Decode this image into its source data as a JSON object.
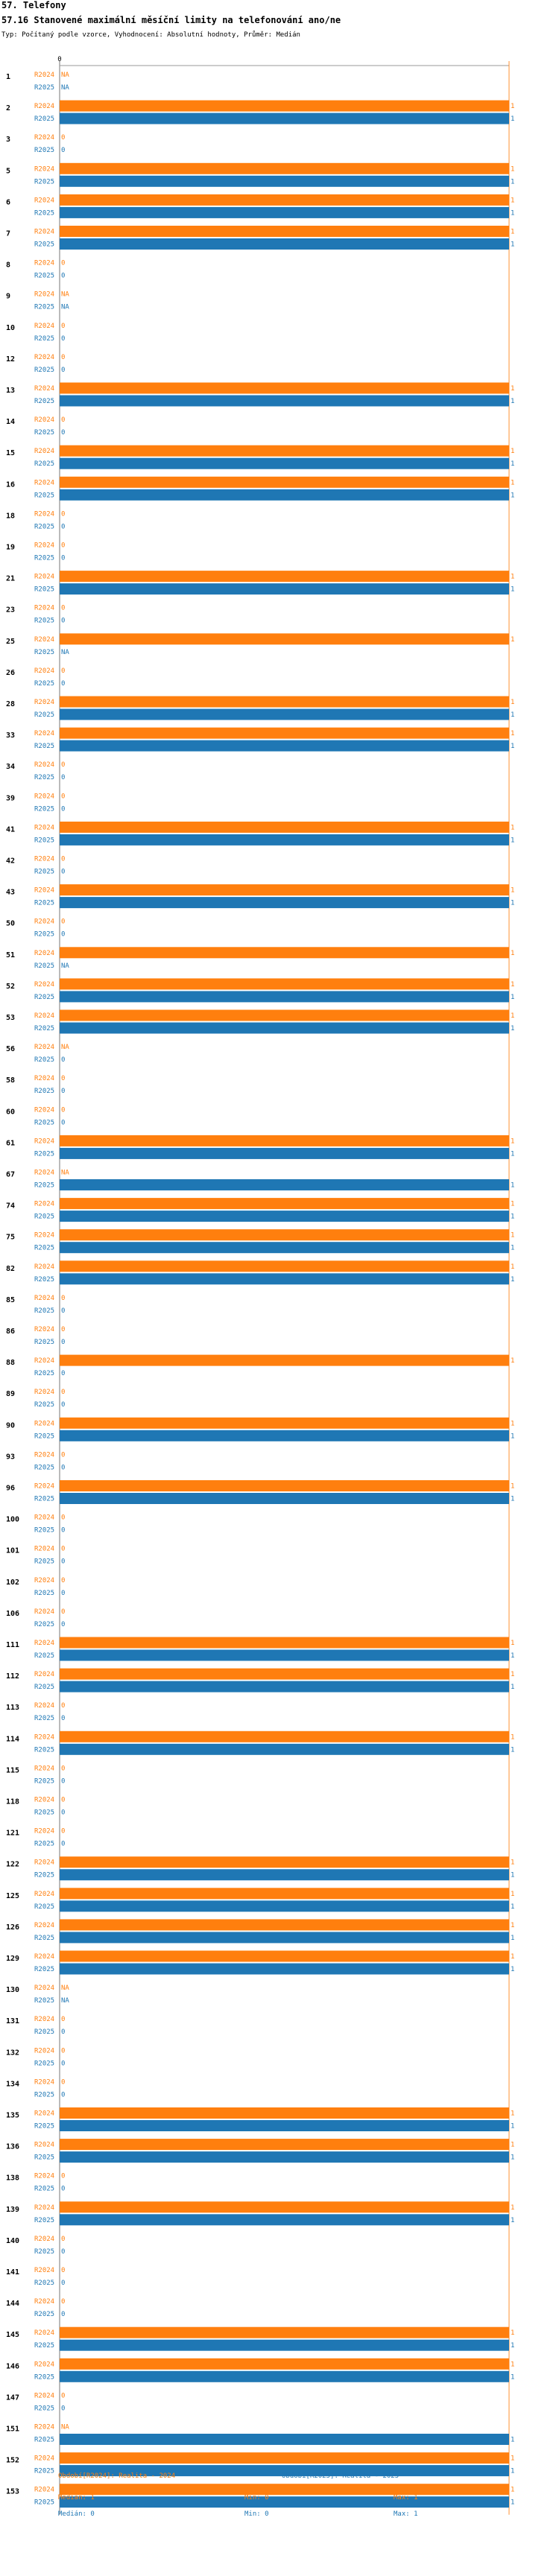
{
  "header": {
    "section": "57. Telefony",
    "title": "57.16 Stanovené maximální měsíční limity na telefonování ano/ne",
    "subtitle": "Typ: Počítaný podle vzorce, Vyhodnocení: Absolutní hodnoty, Průměr: Medián"
  },
  "colors": {
    "r2024": "#ff7f0e",
    "r2025": "#1f77b4"
  },
  "chart_data": {
    "type": "bar",
    "orientation": "horizontal",
    "axis_zero_label": "0",
    "xlim": [
      0,
      1
    ],
    "series": [
      {
        "name": "R2024",
        "color": "#ff7f0e"
      },
      {
        "name": "R2025",
        "color": "#1f77b4"
      }
    ],
    "categories": [
      {
        "id": "1",
        "R2024": null,
        "R2025": null
      },
      {
        "id": "2",
        "R2024": 1,
        "R2025": 1
      },
      {
        "id": "3",
        "R2024": 0,
        "R2025": 0
      },
      {
        "id": "5",
        "R2024": 1,
        "R2025": 1
      },
      {
        "id": "6",
        "R2024": 1,
        "R2025": 1
      },
      {
        "id": "7",
        "R2024": 1,
        "R2025": 1
      },
      {
        "id": "8",
        "R2024": 0,
        "R2025": 0
      },
      {
        "id": "9",
        "R2024": null,
        "R2025": null
      },
      {
        "id": "10",
        "R2024": 0,
        "R2025": 0
      },
      {
        "id": "12",
        "R2024": 0,
        "R2025": 0
      },
      {
        "id": "13",
        "R2024": 1,
        "R2025": 1
      },
      {
        "id": "14",
        "R2024": 0,
        "R2025": 0
      },
      {
        "id": "15",
        "R2024": 1,
        "R2025": 1
      },
      {
        "id": "16",
        "R2024": 1,
        "R2025": 1
      },
      {
        "id": "18",
        "R2024": 0,
        "R2025": 0
      },
      {
        "id": "19",
        "R2024": 0,
        "R2025": 0
      },
      {
        "id": "21",
        "R2024": 1,
        "R2025": 1
      },
      {
        "id": "23",
        "R2024": 0,
        "R2025": 0
      },
      {
        "id": "25",
        "R2024": 1,
        "R2025": null
      },
      {
        "id": "26",
        "R2024": 0,
        "R2025": 0
      },
      {
        "id": "28",
        "R2024": 1,
        "R2025": 1
      },
      {
        "id": "33",
        "R2024": 1,
        "R2025": 1
      },
      {
        "id": "34",
        "R2024": 0,
        "R2025": 0
      },
      {
        "id": "39",
        "R2024": 0,
        "R2025": 0
      },
      {
        "id": "41",
        "R2024": 1,
        "R2025": 1
      },
      {
        "id": "42",
        "R2024": 0,
        "R2025": 0
      },
      {
        "id": "43",
        "R2024": 1,
        "R2025": 1
      },
      {
        "id": "50",
        "R2024": 0,
        "R2025": 0
      },
      {
        "id": "51",
        "R2024": 1,
        "R2025": null
      },
      {
        "id": "52",
        "R2024": 1,
        "R2025": 1
      },
      {
        "id": "53",
        "R2024": 1,
        "R2025": 1
      },
      {
        "id": "56",
        "R2024": null,
        "R2025": 0
      },
      {
        "id": "58",
        "R2024": 0,
        "R2025": 0
      },
      {
        "id": "60",
        "R2024": 0,
        "R2025": 0
      },
      {
        "id": "61",
        "R2024": 1,
        "R2025": 1
      },
      {
        "id": "67",
        "R2024": null,
        "R2025": 1
      },
      {
        "id": "74",
        "R2024": 1,
        "R2025": 1
      },
      {
        "id": "75",
        "R2024": 1,
        "R2025": 1
      },
      {
        "id": "82",
        "R2024": 1,
        "R2025": 1
      },
      {
        "id": "85",
        "R2024": 0,
        "R2025": 0
      },
      {
        "id": "86",
        "R2024": 0,
        "R2025": 0
      },
      {
        "id": "88",
        "R2024": 1,
        "R2025": 0
      },
      {
        "id": "89",
        "R2024": 0,
        "R2025": 0
      },
      {
        "id": "90",
        "R2024": 1,
        "R2025": 1
      },
      {
        "id": "93",
        "R2024": 0,
        "R2025": 0
      },
      {
        "id": "96",
        "R2024": 1,
        "R2025": 1
      },
      {
        "id": "100",
        "R2024": 0,
        "R2025": 0
      },
      {
        "id": "101",
        "R2024": 0,
        "R2025": 0
      },
      {
        "id": "102",
        "R2024": 0,
        "R2025": 0
      },
      {
        "id": "106",
        "R2024": 0,
        "R2025": 0
      },
      {
        "id": "111",
        "R2024": 1,
        "R2025": 1
      },
      {
        "id": "112",
        "R2024": 1,
        "R2025": 1
      },
      {
        "id": "113",
        "R2024": 0,
        "R2025": 0
      },
      {
        "id": "114",
        "R2024": 1,
        "R2025": 1
      },
      {
        "id": "115",
        "R2024": 0,
        "R2025": 0
      },
      {
        "id": "118",
        "R2024": 0,
        "R2025": 0
      },
      {
        "id": "121",
        "R2024": 0,
        "R2025": 0
      },
      {
        "id": "122",
        "R2024": 1,
        "R2025": 1
      },
      {
        "id": "125",
        "R2024": 1,
        "R2025": 1
      },
      {
        "id": "126",
        "R2024": 1,
        "R2025": 1
      },
      {
        "id": "129",
        "R2024": 1,
        "R2025": 1
      },
      {
        "id": "130",
        "R2024": null,
        "R2025": null
      },
      {
        "id": "131",
        "R2024": 0,
        "R2025": 0
      },
      {
        "id": "132",
        "R2024": 0,
        "R2025": 0
      },
      {
        "id": "134",
        "R2024": 0,
        "R2025": 0
      },
      {
        "id": "135",
        "R2024": 1,
        "R2025": 1
      },
      {
        "id": "136",
        "R2024": 1,
        "R2025": 1
      },
      {
        "id": "138",
        "R2024": 0,
        "R2025": 0
      },
      {
        "id": "139",
        "R2024": 1,
        "R2025": 1
      },
      {
        "id": "140",
        "R2024": 0,
        "R2025": 0
      },
      {
        "id": "141",
        "R2024": 0,
        "R2025": 0
      },
      {
        "id": "144",
        "R2024": 0,
        "R2025": 0
      },
      {
        "id": "145",
        "R2024": 1,
        "R2025": 1
      },
      {
        "id": "146",
        "R2024": 1,
        "R2025": 1
      },
      {
        "id": "147",
        "R2024": 0,
        "R2025": 0
      },
      {
        "id": "151",
        "R2024": null,
        "R2025": 1
      },
      {
        "id": "152",
        "R2024": 1,
        "R2025": 1
      },
      {
        "id": "153",
        "R2024": 1,
        "R2025": 1
      }
    ]
  },
  "legend": {
    "r2024": {
      "title": "Období[R2024]: Realita - 2024",
      "median": "Medián: 1",
      "min": "Min: 0",
      "max": "Max: 1"
    },
    "r2025": {
      "title": "Období[R2025]: Realita - 2025",
      "median": "Medián: 0",
      "min": "Min: 0",
      "max": "Max: 1"
    }
  }
}
